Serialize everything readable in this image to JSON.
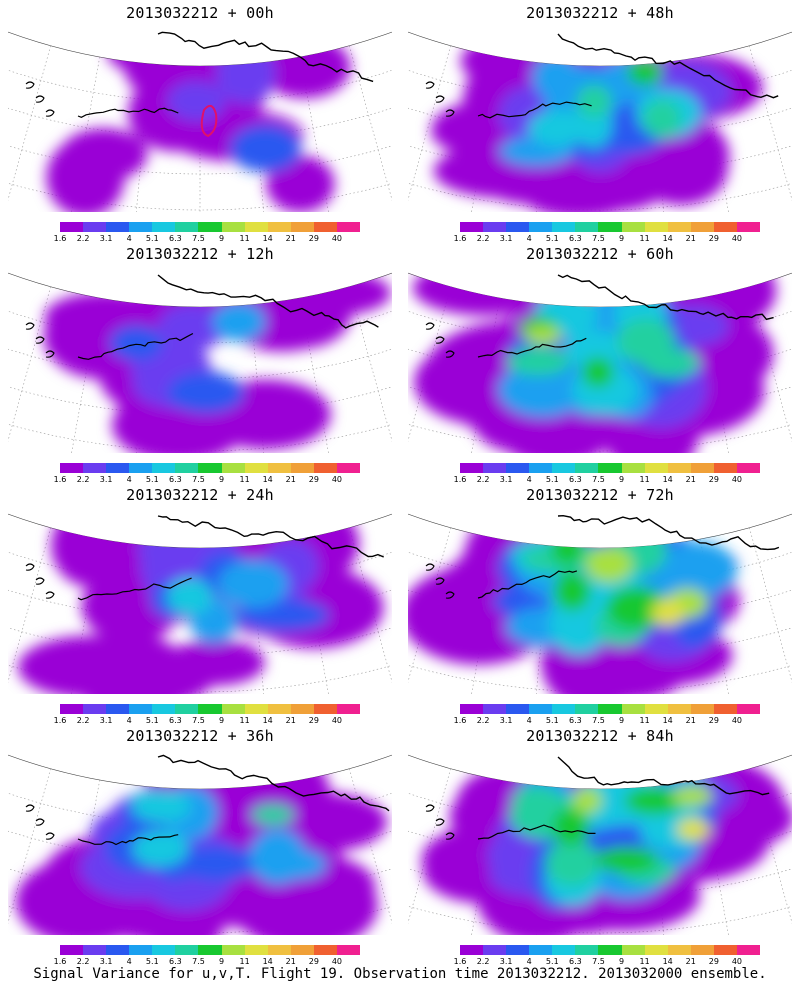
{
  "panels": [
    {
      "title": "2013032212 + 00h",
      "intensity": 0.05
    },
    {
      "title": "2013032212 + 48h",
      "intensity": 0.55
    },
    {
      "title": "2013032212 + 12h",
      "intensity": 0.15
    },
    {
      "title": "2013032212 + 60h",
      "intensity": 0.62
    },
    {
      "title": "2013032212 + 24h",
      "intensity": 0.28
    },
    {
      "title": "2013032212 + 72h",
      "intensity": 0.72
    },
    {
      "title": "2013032212 + 36h",
      "intensity": 0.4
    },
    {
      "title": "2013032212 + 84h",
      "intensity": 0.8
    }
  ],
  "colorbar": {
    "labels": [
      "1.6",
      "2.2",
      "3.1",
      "4",
      "5.1",
      "6.3",
      "7.5",
      "9",
      "11",
      "14",
      "21",
      "29",
      "40"
    ],
    "colors": [
      "#9a00d6",
      "#6a3cf0",
      "#2a58f0",
      "#1aa0f0",
      "#18c8e0",
      "#20d0a0",
      "#18c830",
      "#a8e040",
      "#e0e040",
      "#f0c040",
      "#f0a038",
      "#f06030",
      "#f02090"
    ]
  },
  "caption": "Signal Variance for u,v,T. Flight 19. Observation time 2013032212. 2013032000 ensemble."
}
